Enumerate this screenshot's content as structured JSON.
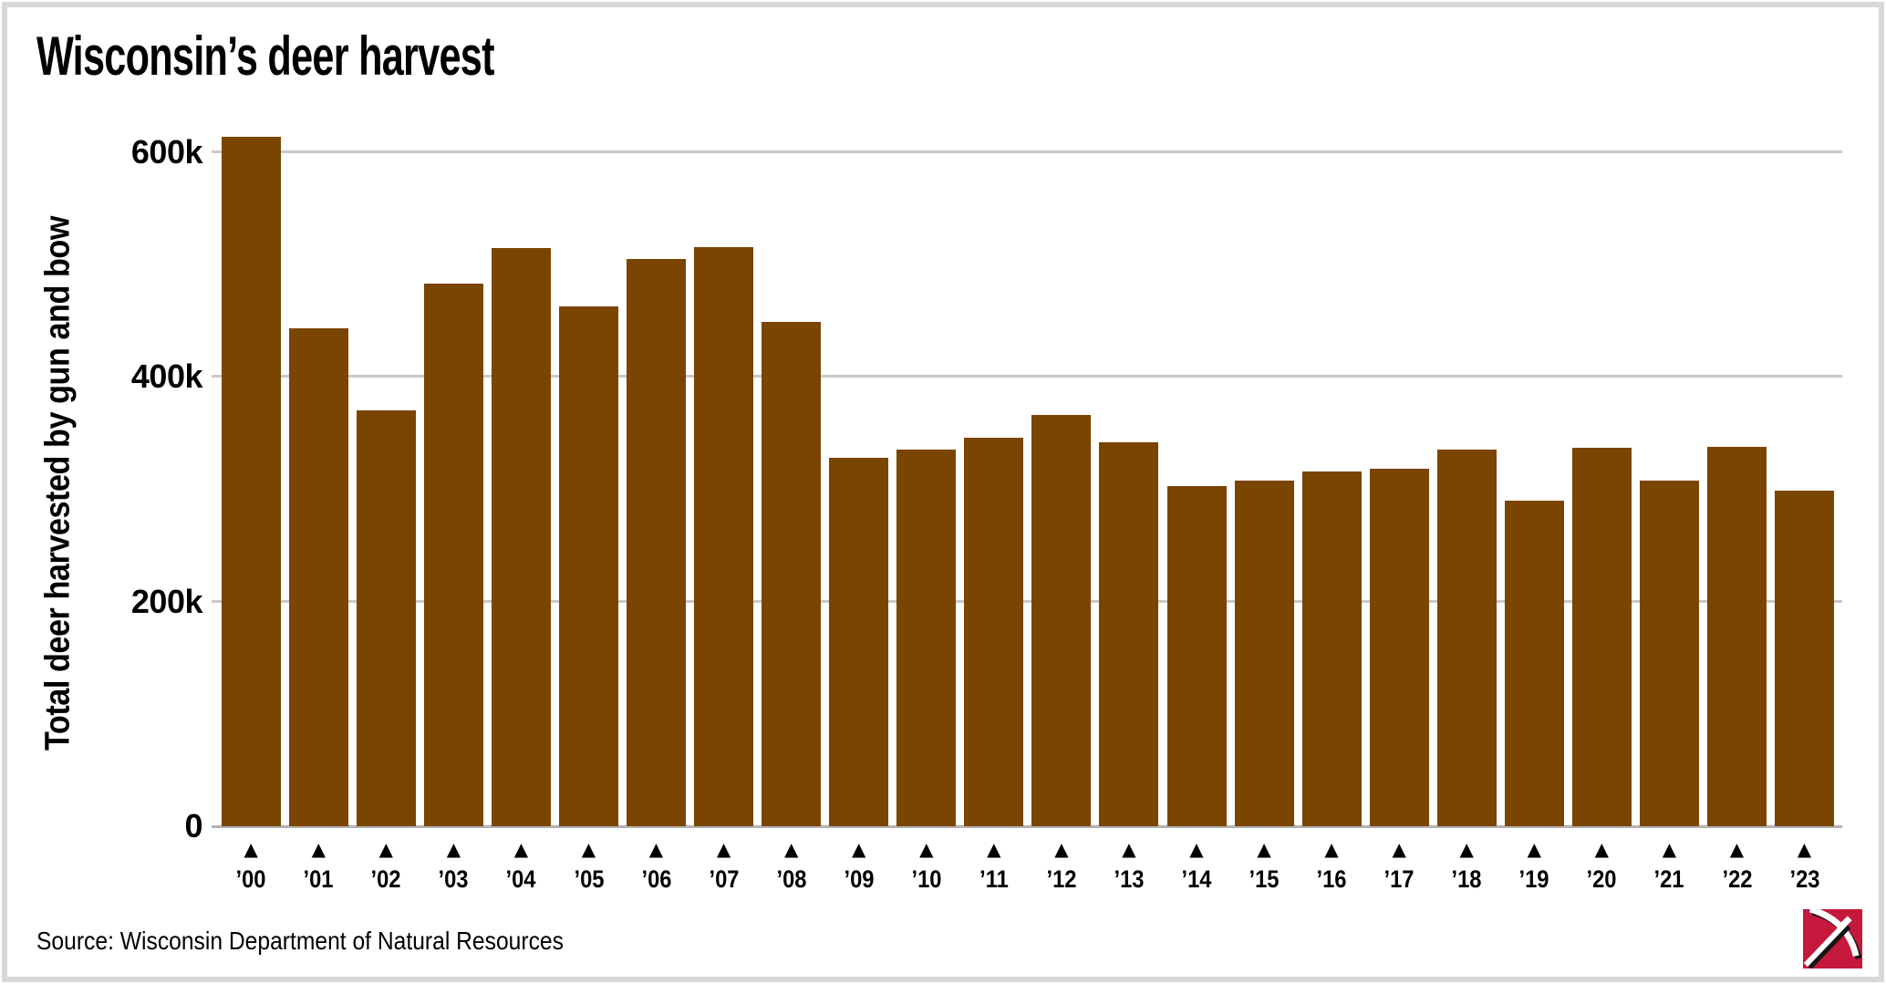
{
  "title": "Wisconsin’s deer harvest",
  "source": "Source: Wisconsin Department of Natural Resources",
  "logo": {
    "name": "pickaxe-logo",
    "background": "#c5183c"
  },
  "colors": {
    "bar": "#7a4500",
    "grid": "#c9c9c9",
    "axis_baseline": "#b3b3b3",
    "card_border": "#d8d8d8",
    "text": "#000000",
    "background": "#ffffff",
    "logo_red": "#c5183c"
  },
  "chart_data": {
    "type": "bar",
    "title": "Wisconsin’s deer harvest",
    "xlabel": "",
    "ylabel": "Total deer harvested by gun and bow",
    "categories": [
      "’00",
      "’01",
      "’02",
      "’03",
      "’04",
      "’05",
      "’06",
      "’07",
      "’08",
      "’09",
      "’10",
      "’11",
      "’12",
      "’13",
      "’14",
      "’15",
      "’16",
      "’17",
      "’18",
      "’19",
      "’20",
      "’21",
      "’22",
      "’23"
    ],
    "values": [
      614,
      443,
      370,
      483,
      515,
      463,
      505,
      516,
      449,
      328,
      335,
      346,
      366,
      342,
      303,
      308,
      316,
      318,
      335,
      290,
      337,
      308,
      338,
      299
    ],
    "values_unit": "thousands of deer",
    "ylim": [
      0,
      640
    ],
    "yticks": [
      {
        "value": 0,
        "label": "0"
      },
      {
        "value": 200,
        "label": "200k"
      },
      {
        "value": 400,
        "label": "400k"
      },
      {
        "value": 600,
        "label": "600k"
      }
    ],
    "bar_color": "#7a4500",
    "gridlines": true,
    "legend": "none",
    "x_marker": "▲"
  }
}
